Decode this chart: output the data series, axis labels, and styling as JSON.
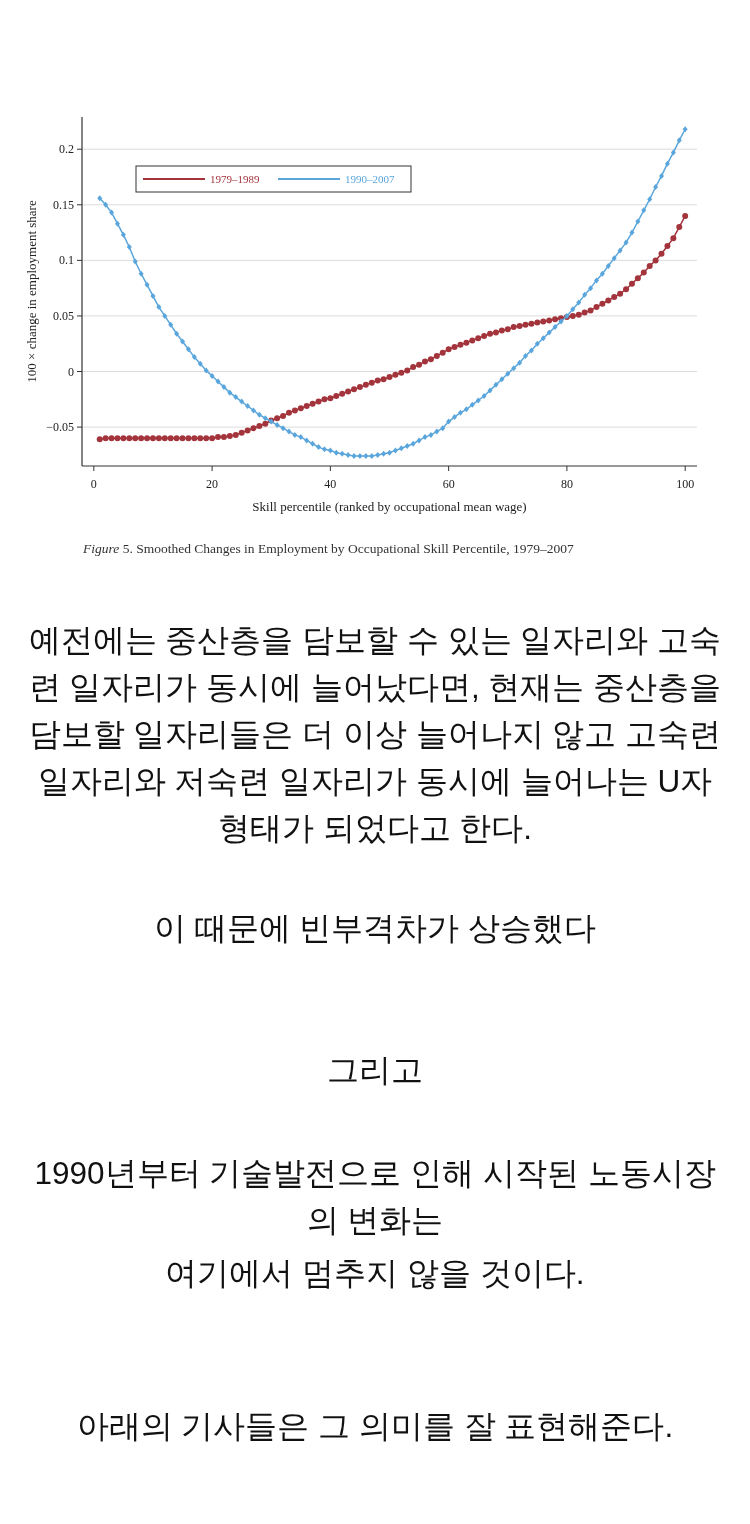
{
  "chart_data": {
    "type": "line",
    "xlabel": "Skill percentile (ranked by occupational mean wage)",
    "ylabel": "100 × change in employment share",
    "x": [
      1,
      2,
      3,
      4,
      5,
      6,
      7,
      8,
      9,
      10,
      11,
      12,
      13,
      14,
      15,
      16,
      17,
      18,
      19,
      20,
      21,
      22,
      23,
      24,
      25,
      26,
      27,
      28,
      29,
      30,
      31,
      32,
      33,
      34,
      35,
      36,
      37,
      38,
      39,
      40,
      41,
      42,
      43,
      44,
      45,
      46,
      47,
      48,
      49,
      50,
      51,
      52,
      53,
      54,
      55,
      56,
      57,
      58,
      59,
      60,
      61,
      62,
      63,
      64,
      65,
      66,
      67,
      68,
      69,
      70,
      71,
      72,
      73,
      74,
      75,
      76,
      77,
      78,
      79,
      80,
      81,
      82,
      83,
      84,
      85,
      86,
      87,
      88,
      89,
      90,
      91,
      92,
      93,
      94,
      95,
      96,
      97,
      98,
      99,
      100
    ],
    "series": [
      {
        "name": "1979–1989",
        "color": "#a3343c",
        "marker": "circle",
        "values": [
          -0.061,
          -0.06,
          -0.06,
          -0.06,
          -0.06,
          -0.06,
          -0.06,
          -0.06,
          -0.06,
          -0.06,
          -0.06,
          -0.06,
          -0.06,
          -0.06,
          -0.06,
          -0.06,
          -0.06,
          -0.06,
          -0.06,
          -0.06,
          -0.059,
          -0.059,
          -0.058,
          -0.057,
          -0.055,
          -0.053,
          -0.051,
          -0.049,
          -0.047,
          -0.044,
          -0.042,
          -0.04,
          -0.037,
          -0.035,
          -0.033,
          -0.031,
          -0.029,
          -0.027,
          -0.025,
          -0.024,
          -0.022,
          -0.02,
          -0.018,
          -0.016,
          -0.014,
          -0.012,
          -0.01,
          -0.008,
          -0.007,
          -0.005,
          -0.003,
          -0.001,
          0.001,
          0.004,
          0.006,
          0.009,
          0.011,
          0.014,
          0.017,
          0.02,
          0.022,
          0.024,
          0.026,
          0.028,
          0.03,
          0.032,
          0.034,
          0.035,
          0.037,
          0.038,
          0.04,
          0.041,
          0.042,
          0.043,
          0.044,
          0.045,
          0.046,
          0.047,
          0.048,
          0.049,
          0.05,
          0.051,
          0.053,
          0.055,
          0.058,
          0.061,
          0.064,
          0.067,
          0.07,
          0.074,
          0.079,
          0.084,
          0.089,
          0.095,
          0.1,
          0.106,
          0.113,
          0.12,
          0.13,
          0.14
        ]
      },
      {
        "name": "1990–2007",
        "color": "#5aa6dc",
        "marker": "diamond",
        "values": [
          0.156,
          0.15,
          0.143,
          0.133,
          0.123,
          0.112,
          0.099,
          0.088,
          0.078,
          0.068,
          0.058,
          0.05,
          0.042,
          0.034,
          0.027,
          0.02,
          0.013,
          0.007,
          0.001,
          -0.004,
          -0.009,
          -0.014,
          -0.019,
          -0.023,
          -0.027,
          -0.031,
          -0.035,
          -0.039,
          -0.042,
          -0.045,
          -0.048,
          -0.051,
          -0.054,
          -0.057,
          -0.059,
          -0.062,
          -0.065,
          -0.068,
          -0.07,
          -0.071,
          -0.073,
          -0.074,
          -0.075,
          -0.076,
          -0.076,
          -0.076,
          -0.076,
          -0.075,
          -0.074,
          -0.073,
          -0.071,
          -0.069,
          -0.067,
          -0.065,
          -0.062,
          -0.059,
          -0.057,
          -0.054,
          -0.051,
          -0.045,
          -0.041,
          -0.037,
          -0.034,
          -0.03,
          -0.026,
          -0.022,
          -0.017,
          -0.012,
          -0.007,
          -0.002,
          0.003,
          0.008,
          0.014,
          0.019,
          0.025,
          0.03,
          0.035,
          0.04,
          0.045,
          0.05,
          0.056,
          0.062,
          0.069,
          0.075,
          0.082,
          0.088,
          0.095,
          0.102,
          0.109,
          0.116,
          0.125,
          0.135,
          0.145,
          0.155,
          0.166,
          0.176,
          0.187,
          0.197,
          0.208,
          0.218
        ]
      }
    ],
    "xlim": [
      -2,
      102
    ],
    "ylim": [
      -0.085,
      0.229
    ],
    "xticks": [
      0,
      20,
      40,
      60,
      80,
      100
    ],
    "yticks": [
      {
        "value": -0.05,
        "label": "−0.05"
      },
      0,
      0.05,
      0.1,
      0.15,
      0.2
    ],
    "grid": "y",
    "legend": "top left",
    "annotations": [
      "*Figure* 5. Smoothed Changes in Employment by Occupational Skill Percentile, 1979–2007",
      "예전에는 중산층을 담보할 수 있는 일자리와 고숙련 일자리가 동시에 늘어났다면, 현재는 중산층을 담보할 일자리들은 더 이상 늘어나지 않고 고숙련 일자리와 저숙련 일자리가 동시에 늘어나는 U자 형태가 되었다고 한다.",
      "이 때문에 빈부격차가 상승했다",
      "그리고",
      "1990년부터 기술발전으로 인해 시작된 노동시장의 변화는",
      "여기에서 멈추지 않을 것이다.",
      "아래의 기사들은 그 의미를 잘 표현해준다."
    ]
  }
}
